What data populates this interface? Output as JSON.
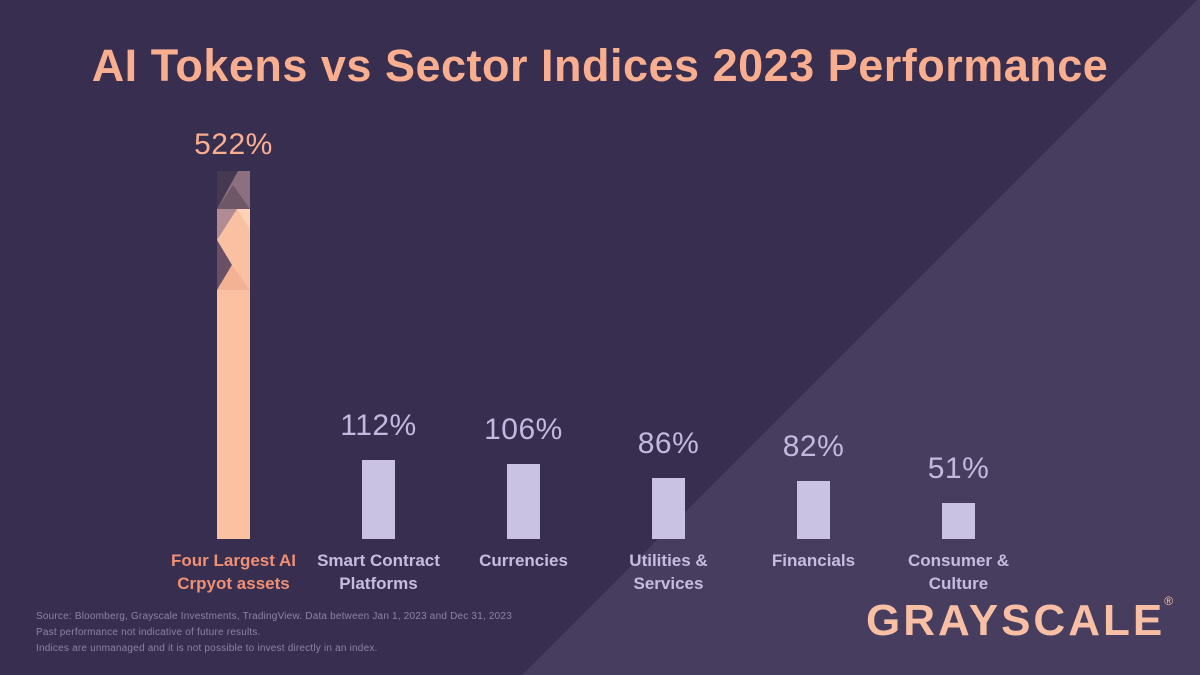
{
  "title": "AI Tokens vs Sector Indices 2023 Performance",
  "chart_data": {
    "type": "bar",
    "categories": [
      "Four Largest AI Crpyot assets",
      "Smart Contract Platforms",
      "Currencies",
      "Utilities & Services",
      "Financials",
      "Consumer & Culture"
    ],
    "category_lines": [
      [
        "Four Largest AI",
        "Crpyot assets"
      ],
      [
        "Smart Contract",
        "Platforms"
      ],
      [
        "Currencies"
      ],
      [
        "Utilities &",
        "Services"
      ],
      [
        "Financials"
      ],
      [
        "Consumer &",
        "Culture"
      ]
    ],
    "values": [
      522,
      112,
      106,
      86,
      82,
      51
    ],
    "value_labels": [
      "522%",
      "112%",
      "106%",
      "86%",
      "82%",
      "51%"
    ],
    "title": "AI Tokens vs Sector Indices 2023 Performance",
    "xlabel": "",
    "ylabel": "",
    "ylim": [
      0,
      560
    ],
    "grid": false,
    "legend": false,
    "highlight_index": 0,
    "highlight_note": "first bar is peach with low-poly facet pattern at top; others are lavender"
  },
  "footer": {
    "source_lines": [
      "Source: Bloomberg, Grayscale Investments, TradingView. Data between Jan 1, 2023 and Dec 31, 2023",
      "Past performance not indicative of future results.",
      "Indices are unmanaged and it is not possible to invest directly in an index."
    ],
    "logo_text": "GRAYSCALE",
    "logo_reg": "®"
  },
  "colors": {
    "bg_dark": "#382e50",
    "bg_light": "#463d5f",
    "salmon": "#f9ae90",
    "salmon_label": "#ef9074",
    "peach_bar": "#fcc1a0",
    "lavender_bar": "#c9c2e2",
    "lavender_text": "#c1b9e0",
    "lavender_label": "#c5bde0",
    "muted_text": "#8b83a6",
    "logo": "#f9bfa4"
  }
}
